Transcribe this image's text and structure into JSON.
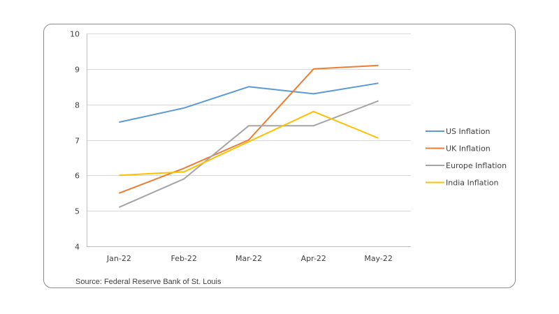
{
  "chart_data": {
    "type": "line",
    "title": "",
    "xlabel": "",
    "ylabel": "",
    "categories": [
      "Jan-22",
      "Feb-22",
      "Mar-22",
      "Apr-22",
      "May-22"
    ],
    "ylim": [
      4,
      10
    ],
    "yticks": [
      4,
      5,
      6,
      7,
      8,
      9,
      10
    ],
    "grid": true,
    "legend_position": "right",
    "series": [
      {
        "name": "US Inflation",
        "color": "#5b9bd5",
        "values": [
          7.5,
          7.9,
          8.5,
          8.3,
          8.6
        ]
      },
      {
        "name": "UK Inflation",
        "color": "#ed7d31",
        "values": [
          5.5,
          6.2,
          7.0,
          9.0,
          9.1
        ]
      },
      {
        "name": "Europe Inflation",
        "color": "#a5a5a5",
        "values": [
          5.1,
          5.9,
          7.4,
          7.4,
          8.1
        ]
      },
      {
        "name": "India Inflation",
        "color": "#ffc000",
        "values": [
          6.0,
          6.1,
          6.95,
          7.8,
          7.05
        ]
      }
    ],
    "source": "Source: Federal Reserve Bank of St. Louis"
  }
}
